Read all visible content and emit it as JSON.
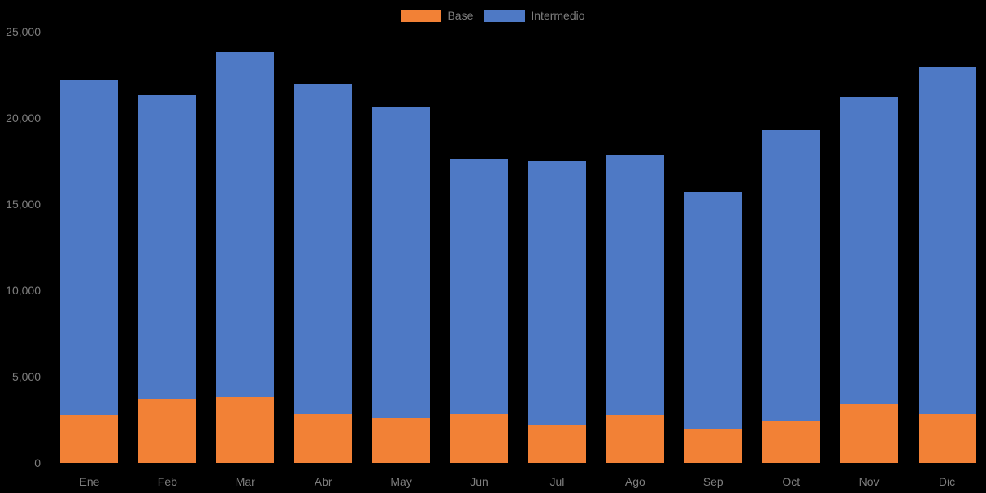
{
  "chart_data": {
    "type": "bar",
    "stacked": true,
    "title": "",
    "xlabel": "",
    "ylabel": "",
    "legend_position": "top",
    "grid": false,
    "background_color": "#000000",
    "label_color": "#7e7e7e",
    "categories": [
      "Ene",
      "Feb",
      "Mar",
      "Abr",
      "May",
      "Jun",
      "Jul",
      "Ago",
      "Sep",
      "Oct",
      "Nov",
      "Dic"
    ],
    "series": [
      {
        "name": "Base",
        "color": "#F28136",
        "values": [
          2800,
          3750,
          3800,
          2850,
          2600,
          2850,
          2150,
          2800,
          2000,
          2400,
          3450,
          2850
        ]
      },
      {
        "name": "Intermedio",
        "color": "#4E79C5",
        "values": [
          19400,
          17550,
          20000,
          19150,
          18050,
          14750,
          15350,
          15050,
          13700,
          16900,
          17800,
          20100
        ]
      }
    ],
    "totals": [
      22200,
      21300,
      23800,
      22000,
      20650,
      17600,
      17500,
      17850,
      15700,
      19300,
      21250,
      22950
    ],
    "ylim": [
      0,
      25000
    ],
    "yticks": [
      0,
      5000,
      10000,
      15000,
      20000,
      25000
    ],
    "ytick_labels": [
      "0",
      "5,000",
      "10,000",
      "15,000",
      "20,000",
      "25,000"
    ]
  }
}
